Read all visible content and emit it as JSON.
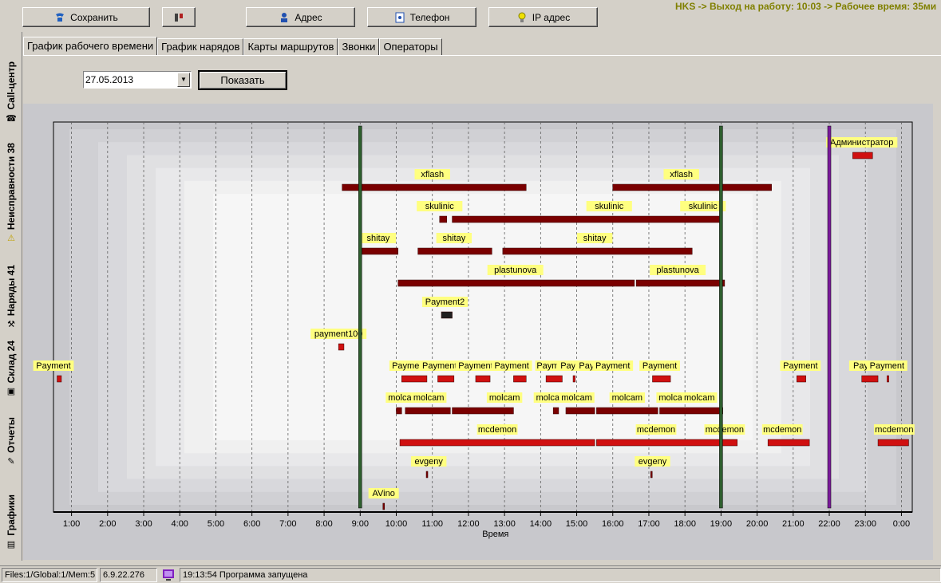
{
  "toolbar": {
    "save": "Сохранить",
    "address": "Адрес",
    "phone": "Телефон",
    "ip": "IP адрес"
  },
  "status_message": "HKS -> Выход на работу: 10:03 -> Рабочее время: 35ми",
  "side_tabs": [
    {
      "label": "Call-центр",
      "icon": "headset-icon"
    },
    {
      "label": "Неисправности 38",
      "icon": "warning-icon"
    },
    {
      "label": "Наряды 41",
      "icon": "workers-icon"
    },
    {
      "label": "Склад 24",
      "icon": "box-icon"
    },
    {
      "label": "Отчеты",
      "icon": "report-icon"
    },
    {
      "label": "Графики",
      "icon": "chart-icon"
    }
  ],
  "tabs": [
    "График рабочего времени",
    "График нарядов",
    "Карты маршрутов",
    "Звонки",
    "Операторы"
  ],
  "date_value": "27.05.2013",
  "show_button": "Показать",
  "colors": {
    "bar": "#7a0000",
    "bar_bright": "#d01010",
    "bar_dark": "#202020",
    "label_bg": "#ffff80",
    "green_line": "#2e5e2e",
    "purple_line": "#7a1a9a"
  },
  "chart_data": {
    "type": "gantt",
    "xlabel": "Время",
    "ticks": [
      "1:00",
      "2:00",
      "3:00",
      "4:00",
      "5:00",
      "6:00",
      "7:00",
      "8:00",
      "9:00",
      "10:00",
      "11:00",
      "12:00",
      "13:00",
      "14:00",
      "15:00",
      "16:00",
      "17:00",
      "18:00",
      "19:00",
      "20:00",
      "21:00",
      "22:00",
      "23:00",
      "0:00"
    ],
    "xlim": [
      0.5,
      24.3
    ],
    "markers": [
      {
        "time": 9.0,
        "color": "green"
      },
      {
        "time": 19.0,
        "color": "green"
      },
      {
        "time": 22.0,
        "color": "purple"
      }
    ],
    "rows": [
      {
        "y": 190,
        "labels": [
          {
            "text": "Администратор",
            "t": 22.9
          }
        ],
        "bars": [
          {
            "s": 22.65,
            "e": 23.2,
            "c": "bright"
          }
        ]
      },
      {
        "y": 230,
        "labels": [
          {
            "text": "xflash",
            "t": 11.0
          },
          {
            "text": "xflash",
            "t": 17.9
          }
        ],
        "bars": [
          {
            "s": 8.5,
            "e": 13.6,
            "c": "dark"
          },
          {
            "s": 16.0,
            "e": 20.4,
            "c": "dark"
          }
        ]
      },
      {
        "y": 270,
        "labels": [
          {
            "text": "skulinic",
            "t": 11.2
          },
          {
            "text": "skulinic",
            "t": 15.9
          },
          {
            "text": "skulinic",
            "t": 18.5
          }
        ],
        "bars": [
          {
            "s": 11.2,
            "e": 11.4,
            "c": "dark"
          },
          {
            "s": 11.55,
            "e": 19.0,
            "c": "dark"
          }
        ]
      },
      {
        "y": 310,
        "labels": [
          {
            "text": "shitay",
            "t": 9.5
          },
          {
            "text": "shitay",
            "t": 11.6
          },
          {
            "text": "shitay",
            "t": 15.5
          }
        ],
        "bars": [
          {
            "s": 9.05,
            "e": 10.05,
            "c": "dark"
          },
          {
            "s": 10.6,
            "e": 12.65,
            "c": "dark"
          },
          {
            "s": 12.95,
            "e": 18.2,
            "c": "dark"
          }
        ]
      },
      {
        "y": 350,
        "labels": [
          {
            "text": "plastunova",
            "t": 13.3
          },
          {
            "text": "plastunova",
            "t": 17.8
          }
        ],
        "bars": [
          {
            "s": 10.05,
            "e": 16.6,
            "c": "dark"
          },
          {
            "s": 16.65,
            "e": 19.1,
            "c": "dark"
          }
        ]
      },
      {
        "y": 390,
        "labels": [
          {
            "text": "Payment2",
            "t": 11.35
          }
        ],
        "bars": [
          {
            "s": 11.25,
            "e": 11.55,
            "c": "black"
          }
        ]
      },
      {
        "y": 430,
        "labels": [
          {
            "text": "payment100",
            "t": 8.4
          }
        ],
        "bars": [
          {
            "s": 8.4,
            "e": 8.55,
            "c": "bright"
          }
        ]
      },
      {
        "y": 470,
        "labels": [
          {
            "text": "Payment",
            "t": 0.5
          },
          {
            "text": "Paymer",
            "t": 10.3
          },
          {
            "text": "Payment",
            "t": 11.2
          },
          {
            "text": "Payment",
            "t": 12.2
          },
          {
            "text": "Payment",
            "t": 13.2
          },
          {
            "text": "Paym",
            "t": 14.2
          },
          {
            "text": "Payr",
            "t": 14.8
          },
          {
            "text": "Payi",
            "t": 15.3
          },
          {
            "text": "Payment",
            "t": 16.0
          },
          {
            "text": "Payment",
            "t": 17.3
          },
          {
            "text": "Payment",
            "t": 21.2
          },
          {
            "text": "Payi",
            "t": 22.9
          },
          {
            "text": "Payment",
            "t": 23.6
          }
        ],
        "bars": [
          {
            "s": 0.6,
            "e": 0.72,
            "c": "bright"
          },
          {
            "s": 10.15,
            "e": 10.85,
            "c": "bright"
          },
          {
            "s": 11.15,
            "e": 11.6,
            "c": "bright"
          },
          {
            "s": 12.2,
            "e": 12.6,
            "c": "bright"
          },
          {
            "s": 13.25,
            "e": 13.6,
            "c": "bright"
          },
          {
            "s": 14.15,
            "e": 14.6,
            "c": "bright"
          },
          {
            "s": 14.9,
            "e": 14.96,
            "c": "bright"
          },
          {
            "s": 17.1,
            "e": 17.6,
            "c": "bright"
          },
          {
            "s": 21.1,
            "e": 21.35,
            "c": "bright"
          },
          {
            "s": 22.9,
            "e": 23.35,
            "c": "bright"
          },
          {
            "s": 23.6,
            "e": 23.65,
            "c": "bright"
          }
        ]
      },
      {
        "y": 510,
        "labels": [
          {
            "text": "molcam",
            "t": 10.2
          },
          {
            "text": "molcam",
            "t": 10.9
          },
          {
            "text": "molcam",
            "t": 13.0
          },
          {
            "text": "molcam",
            "t": 14.3
          },
          {
            "text": "molcam",
            "t": 15.0
          },
          {
            "text": "molcam",
            "t": 16.4
          },
          {
            "text": "molcam",
            "t": 17.7
          },
          {
            "text": "molcam",
            "t": 18.4
          }
        ],
        "bars": [
          {
            "s": 10.0,
            "e": 10.15,
            "c": "dark"
          },
          {
            "s": 10.25,
            "e": 11.5,
            "c": "dark"
          },
          {
            "s": 11.55,
            "e": 13.25,
            "c": "dark"
          },
          {
            "s": 14.35,
            "e": 14.5,
            "c": "dark"
          },
          {
            "s": 14.7,
            "e": 15.5,
            "c": "dark"
          },
          {
            "s": 15.55,
            "e": 17.25,
            "c": "dark"
          },
          {
            "s": 17.3,
            "e": 19.05,
            "c": "dark"
          }
        ]
      },
      {
        "y": 550,
        "labels": [
          {
            "text": "mcdemon",
            "t": 12.8
          },
          {
            "text": "mcdemon",
            "t": 17.2
          },
          {
            "text": "mcdemon",
            "t": 19.1
          },
          {
            "text": "mcdemon",
            "t": 20.7
          },
          {
            "text": "mcdemon",
            "t": 23.8
          }
        ],
        "bars": [
          {
            "s": 10.1,
            "e": 15.5,
            "c": "bright"
          },
          {
            "s": 15.55,
            "e": 19.45,
            "c": "bright"
          },
          {
            "s": 20.3,
            "e": 21.45,
            "c": "bright"
          },
          {
            "s": 23.35,
            "e": 24.2,
            "c": "bright"
          }
        ]
      },
      {
        "y": 590,
        "labels": [
          {
            "text": "evgeny",
            "t": 10.9
          },
          {
            "text": "evgeny",
            "t": 17.1
          }
        ],
        "bars": [
          {
            "s": 10.83,
            "e": 10.86,
            "c": "dark"
          },
          {
            "s": 17.05,
            "e": 17.08,
            "c": "dark"
          }
        ]
      },
      {
        "y": 630,
        "labels": [
          {
            "text": "AVino",
            "t": 9.65
          }
        ],
        "bars": [
          {
            "s": 9.63,
            "e": 9.67,
            "c": "dark"
          }
        ]
      }
    ]
  },
  "statusbar": {
    "files": "Files:1/Global:1/Mem:5",
    "version": "6.9.22.276",
    "message": "19:13:54 Программа запущена"
  }
}
